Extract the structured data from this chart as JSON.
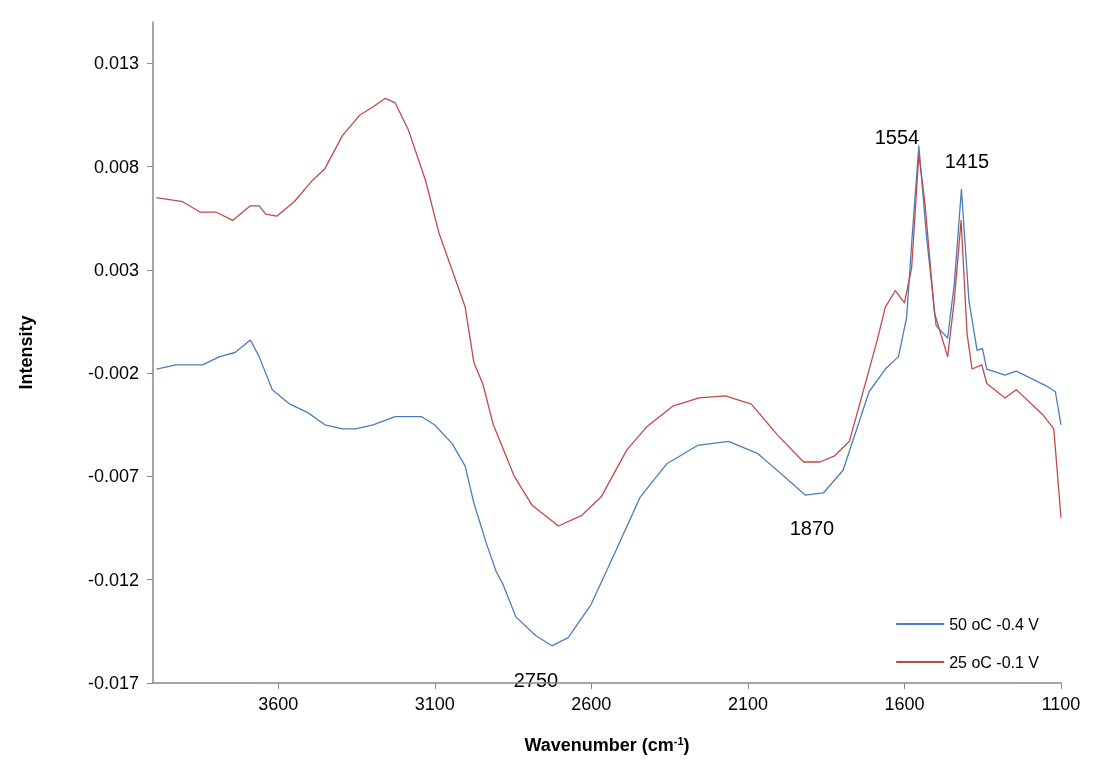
{
  "chart_data": {
    "type": "line",
    "xlabel": "Wavenumber (cm$^{-1}$)",
    "ylabel": "Intensity",
    "xlim": [
      4000,
      1100
    ],
    "xticks": [
      3600,
      3100,
      2600,
      2100,
      1600,
      1100
    ],
    "ylim": [
      -0.017,
      0.015
    ],
    "yticks": [
      -0.017,
      -0.012,
      -0.007,
      -0.002,
      0.003,
      0.008,
      0.013
    ],
    "grid": false,
    "legend": "bottom right",
    "marker": "none",
    "line_style": "solid",
    "annotations": [
      "1554",
      "1415",
      "1870",
      "2750"
    ],
    "series": [
      {
        "name": "50 oC -0.4 V",
        "color": "#4a7ebb",
        "x": [
          3989,
          3926,
          3842,
          3787,
          3738,
          3689,
          3661,
          3619,
          3563,
          3507,
          3451,
          3395,
          3353,
          3297,
          3227,
          3143,
          3101,
          3045,
          3003,
          2975,
          2934,
          2904,
          2883,
          2841,
          2778,
          2726,
          2674,
          2601,
          2528,
          2444,
          2360,
          2261,
          2162,
          2068,
          1984,
          1917,
          1859,
          1796,
          1713,
          1661,
          1619,
          1593,
          1575,
          1554,
          1530,
          1499,
          1462,
          1441,
          1418,
          1394,
          1368,
          1351,
          1337,
          1279,
          1243,
          1149,
          1118,
          1100
        ],
        "values": [
          -0.0018,
          -0.0016,
          -0.0016,
          -0.0012,
          -0.001,
          -0.0004,
          -0.0012,
          -0.0028,
          -0.0035,
          -0.0039,
          -0.0045,
          -0.0047,
          -0.0047,
          -0.0045,
          -0.0041,
          -0.0041,
          -0.0045,
          -0.0054,
          -0.0065,
          -0.0083,
          -0.0103,
          -0.0116,
          -0.0122,
          -0.0138,
          -0.0147,
          -0.0152,
          -0.0148,
          -0.0132,
          -0.0108,
          -0.008,
          -0.0064,
          -0.0055,
          -0.0053,
          -0.0059,
          -0.007,
          -0.0079,
          -0.0078,
          -0.0067,
          -0.0029,
          -0.0018,
          -0.0012,
          0.0007,
          0.0047,
          0.009,
          0.0047,
          0.0003,
          -0.0003,
          0.0023,
          0.0069,
          0.0015,
          -0.0009,
          -0.0008,
          -0.0018,
          -0.0021,
          -0.0019,
          -0.0026,
          -0.0029,
          -0.0045
        ]
      },
      {
        "name": "25 oC -0.1 V",
        "color": "#be4b48",
        "x": [
          3989,
          3905,
          3850,
          3800,
          3745,
          3689,
          3661,
          3640,
          3605,
          3549,
          3493,
          3451,
          3395,
          3339,
          3297,
          3259,
          3227,
          3185,
          3129,
          3087,
          3003,
          2975,
          2947,
          2913,
          2846,
          2789,
          2705,
          2632,
          2569,
          2486,
          2423,
          2340,
          2256,
          2172,
          2089,
          2005,
          1922,
          1870,
          1823,
          1776,
          1723,
          1687,
          1661,
          1629,
          1600,
          1577,
          1554,
          1535,
          1504,
          1462,
          1441,
          1419,
          1400,
          1384,
          1353,
          1337,
          1279,
          1243,
          1159,
          1123,
          1100
        ],
        "values": [
          0.0065,
          0.0063,
          0.0058,
          0.0058,
          0.0054,
          0.0061,
          0.0061,
          0.0057,
          0.0056,
          0.0063,
          0.0073,
          0.0079,
          0.0095,
          0.0105,
          0.0109,
          0.0113,
          0.0111,
          0.0098,
          0.0073,
          0.0048,
          0.0012,
          -0.0015,
          -0.0025,
          -0.0045,
          -0.007,
          -0.0084,
          -0.0094,
          -0.0089,
          -0.008,
          -0.0057,
          -0.0046,
          -0.0036,
          -0.0032,
          -0.0031,
          -0.0035,
          -0.005,
          -0.0063,
          -0.0063,
          -0.006,
          -0.0053,
          -0.0024,
          -0.0004,
          0.0012,
          0.002,
          0.0014,
          0.0031,
          0.0086,
          0.0063,
          0.0009,
          -0.0012,
          0.0015,
          0.0054,
          -0.0001,
          -0.0018,
          -0.0016,
          -0.0025,
          -0.0032,
          -0.0028,
          -0.004,
          -0.0047,
          -0.009
        ]
      }
    ]
  }
}
